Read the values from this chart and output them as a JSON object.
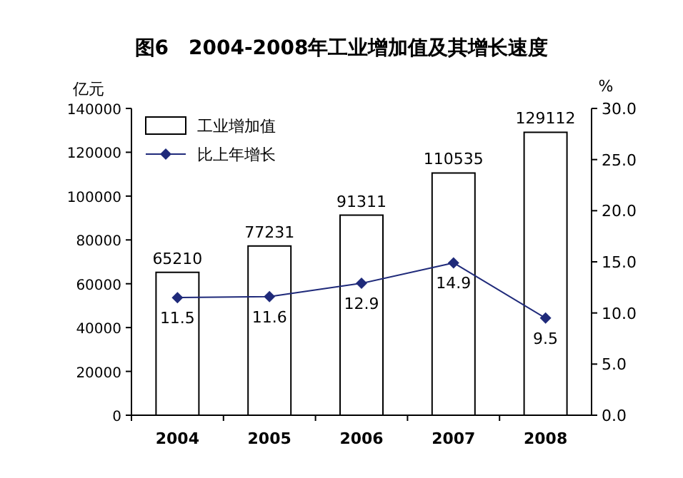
{
  "chart_data": {
    "type": "bar",
    "title": "图6　2004-2008年工业增加值及其增长速度",
    "ylabel": "亿元",
    "y2label": "%",
    "categories": [
      "2004",
      "2005",
      "2006",
      "2007",
      "2008"
    ],
    "series": [
      {
        "name": "工业增加值",
        "color": "#ffffff",
        "values": [
          65210,
          77231,
          91311,
          110535,
          129112
        ]
      },
      {
        "name": "比上年增长",
        "type": "line",
        "axis": "y2",
        "color": "#1f2a7a",
        "marker": "diamond",
        "values": [
          11.5,
          11.6,
          12.9,
          14.9,
          9.5
        ]
      }
    ],
    "ylim": [
      0,
      140000
    ],
    "yticks": [
      0,
      20000,
      40000,
      60000,
      80000,
      100000,
      120000,
      140000
    ],
    "y2lim": [
      0,
      30
    ],
    "y2ticks": [
      {
        "value": 0,
        "label": "0.0"
      },
      {
        "value": 5,
        "label": "5.0"
      },
      {
        "value": 10,
        "label": "10.0"
      },
      {
        "value": 15,
        "label": "15.0"
      },
      {
        "value": 20,
        "label": "20.0"
      },
      {
        "value": 25,
        "label": "25.0"
      },
      {
        "value": 30,
        "label": "30.0"
      }
    ],
    "data_labels": true,
    "legend": "top left",
    "grid": false
  }
}
